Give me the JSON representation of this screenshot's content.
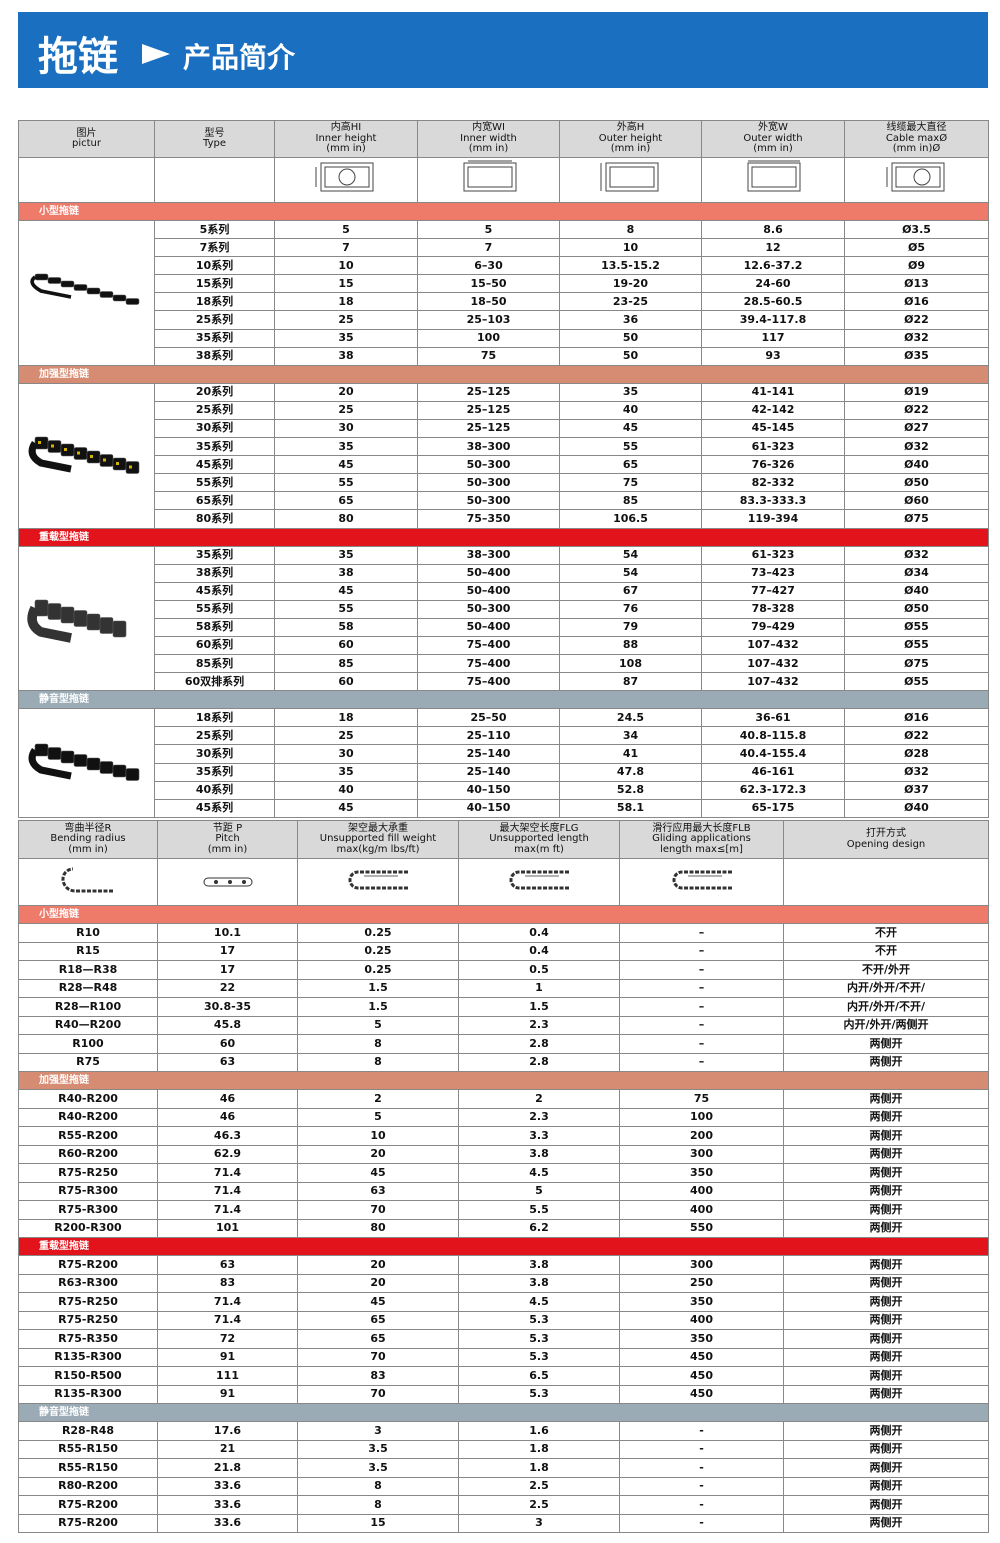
{
  "header": {
    "title": "拖链",
    "subtitle": "产品简介"
  },
  "table1": {
    "columns": [
      [
        "图片",
        "pictur"
      ],
      [
        "型号",
        "Type"
      ],
      [
        "内高HI",
        "Inner height",
        "(mm in)"
      ],
      [
        "内宽WI",
        "Inner width",
        "(mm in)"
      ],
      [
        "外高H",
        "Outer height",
        "(mm in)"
      ],
      [
        "外宽W",
        "Outer width",
        "(mm in)"
      ],
      [
        "线缆最大直径",
        "Cable maxØ",
        "(mm in)Ø"
      ]
    ],
    "sections": [
      {
        "name": "小型拖链",
        "rows": [
          [
            "5系列",
            "5",
            "5",
            "8",
            "8.6",
            "Ø3.5"
          ],
          [
            "7系列",
            "7",
            "7",
            "10",
            "12",
            "Ø5"
          ],
          [
            "10系列",
            "10",
            "6–30",
            "13.5-15.2",
            "12.6-37.2",
            "Ø9"
          ],
          [
            "15系列",
            "15",
            "15–50",
            "19-20",
            "24-60",
            "Ø13"
          ],
          [
            "18系列",
            "18",
            "18–50",
            "23-25",
            "28.5-60.5",
            "Ø16"
          ],
          [
            "25系列",
            "25",
            "25–103",
            "36",
            "39.4-117.8",
            "Ø22"
          ],
          [
            "35系列",
            "35",
            "100",
            "50",
            "117",
            "Ø32"
          ],
          [
            "38系列",
            "38",
            "75",
            "50",
            "93",
            "Ø35"
          ]
        ]
      },
      {
        "name": "加强型拖链",
        "rows": [
          [
            "20系列",
            "20",
            "25–125",
            "35",
            "41-141",
            "Ø19"
          ],
          [
            "25系列",
            "25",
            "25–125",
            "40",
            "42-142",
            "Ø22"
          ],
          [
            "30系列",
            "30",
            "25–125",
            "45",
            "45-145",
            "Ø27"
          ],
          [
            "35系列",
            "35",
            "38–300",
            "55",
            "61-323",
            "Ø32"
          ],
          [
            "45系列",
            "45",
            "50–300",
            "65",
            "76-326",
            "Ø40"
          ],
          [
            "55系列",
            "55",
            "50–300",
            "75",
            "82-332",
            "Ø50"
          ],
          [
            "65系列",
            "65",
            "50–300",
            "85",
            "83.3-333.3",
            "Ø60"
          ],
          [
            "80系列",
            "80",
            "75–350",
            "106.5",
            "119-394",
            "Ø75"
          ]
        ]
      },
      {
        "name": "重载型拖链",
        "rows": [
          [
            "35系列",
            "35",
            "38–300",
            "54",
            "61-323",
            "Ø32"
          ],
          [
            "38系列",
            "38",
            "50–400",
            "54",
            "73–423",
            "Ø34"
          ],
          [
            "45系列",
            "45",
            "50–400",
            "67",
            "77–427",
            "Ø40"
          ],
          [
            "55系列",
            "55",
            "50–300",
            "76",
            "78-328",
            "Ø50"
          ],
          [
            "58系列",
            "58",
            "50–400",
            "79",
            "79–429",
            "Ø55"
          ],
          [
            "60系列",
            "60",
            "75–400",
            "88",
            "107–432",
            "Ø55"
          ],
          [
            "85系列",
            "85",
            "75–400",
            "108",
            "107–432",
            "Ø75"
          ],
          [
            "60双排系列",
            "60",
            "75–400",
            "87",
            "107–432",
            "Ø55"
          ]
        ]
      },
      {
        "name": "静音型拖链",
        "rows": [
          [
            "18系列",
            "18",
            "25–50",
            "24.5",
            "36-61",
            "Ø16"
          ],
          [
            "25系列",
            "25",
            "25–110",
            "34",
            "40.8-115.8",
            "Ø22"
          ],
          [
            "30系列",
            "30",
            "25–140",
            "41",
            "40.4-155.4",
            "Ø28"
          ],
          [
            "35系列",
            "35",
            "25–140",
            "47.8",
            "46-161",
            "Ø32"
          ],
          [
            "40系列",
            "40",
            "40–150",
            "52.8",
            "62.3-172.3",
            "Ø37"
          ],
          [
            "45系列",
            "45",
            "40–150",
            "58.1",
            "65-175",
            "Ø40"
          ]
        ]
      }
    ]
  },
  "table2": {
    "columns": [
      [
        "弯曲半径R",
        "Bending radius",
        "(mm in)"
      ],
      [
        "节距 P",
        "Pitch",
        "(mm in)"
      ],
      [
        "架空最大承重",
        "Unsupported fill weight",
        "max(kg/m lbs/ft)"
      ],
      [
        "最大架空长度FLG",
        "Unsupported length",
        "max(m ft)"
      ],
      [
        "滑行应用最大长度FLB",
        "Gliding applications",
        "length max≤[m]"
      ],
      [
        "打开方式",
        "Opening design"
      ]
    ],
    "sections": [
      {
        "name": "小型拖链",
        "rows": [
          [
            "R10",
            "10.1",
            "0.25",
            "0.4",
            "–",
            "不开"
          ],
          [
            "R15",
            "17",
            "0.25",
            "0.4",
            "–",
            "不开"
          ],
          [
            "R18—R38",
            "17",
            "0.25",
            "0.5",
            "–",
            "不开/外开"
          ],
          [
            "R28—R48",
            "22",
            "1.5",
            "1",
            "–",
            "内开/外开/不开/"
          ],
          [
            "R28—R100",
            "30.8-35",
            "1.5",
            "1.5",
            "–",
            "内开/外开/不开/"
          ],
          [
            "R40—R200",
            "45.8",
            "5",
            "2.3",
            "–",
            "内开/外开/两侧开"
          ],
          [
            "R100",
            "60",
            "8",
            "2.8",
            "–",
            "两侧开"
          ],
          [
            "R75",
            "63",
            "8",
            "2.8",
            "–",
            "两侧开"
          ]
        ]
      },
      {
        "name": "加强型拖链",
        "rows": [
          [
            "R40-R200",
            "46",
            "2",
            "2",
            "75",
            "两侧开"
          ],
          [
            "R40-R200",
            "46",
            "5",
            "2.3",
            "100",
            "两侧开"
          ],
          [
            "R55-R200",
            "46.3",
            "10",
            "3.3",
            "200",
            "两侧开"
          ],
          [
            "R60-R200",
            "62.9",
            "20",
            "3.8",
            "300",
            "两侧开"
          ],
          [
            "R75-R250",
            "71.4",
            "45",
            "4.5",
            "350",
            "两侧开"
          ],
          [
            "R75-R300",
            "71.4",
            "63",
            "5",
            "400",
            "两侧开"
          ],
          [
            "R75-R300",
            "71.4",
            "70",
            "5.5",
            "400",
            "两侧开"
          ],
          [
            "R200-R300",
            "101",
            "80",
            "6.2",
            "550",
            "两侧开"
          ]
        ]
      },
      {
        "name": "重载型拖链",
        "rows": [
          [
            "R75-R200",
            "63",
            "20",
            "3.8",
            "300",
            "两侧开"
          ],
          [
            "R63-R300",
            "83",
            "20",
            "3.8",
            "250",
            "两侧开"
          ],
          [
            "R75-R250",
            "71.4",
            "45",
            "4.5",
            "350",
            "两侧开"
          ],
          [
            "R75-R250",
            "71.4",
            "65",
            "5.3",
            "400",
            "两侧开"
          ],
          [
            "R75-R350",
            "72",
            "65",
            "5.3",
            "350",
            "两侧开"
          ],
          [
            "R135-R300",
            "91",
            "70",
            "5.3",
            "450",
            "两侧开"
          ],
          [
            "R150-R500",
            "111",
            "83",
            "6.5",
            "450",
            "两侧开"
          ],
          [
            "R135-R300",
            "91",
            "70",
            "5.3",
            "450",
            "两侧开"
          ]
        ]
      },
      {
        "name": "静音型拖链",
        "rows": [
          [
            "R28-R48",
            "17.6",
            "3",
            "1.6",
            "-",
            "两侧开"
          ],
          [
            "R55-R150",
            "21",
            "3.5",
            "1.8",
            "-",
            "两侧开"
          ],
          [
            "R55-R150",
            "21.8",
            "3.5",
            "1.8",
            "-",
            "两侧开"
          ],
          [
            "R80-R200",
            "33.6",
            "8",
            "2.5",
            "-",
            "两侧开"
          ],
          [
            "R75-R200",
            "33.6",
            "8",
            "2.5",
            "-",
            "两侧开"
          ],
          [
            "R75-R200",
            "33.6",
            "15",
            "3",
            "-",
            "两侧开"
          ]
        ]
      }
    ]
  }
}
